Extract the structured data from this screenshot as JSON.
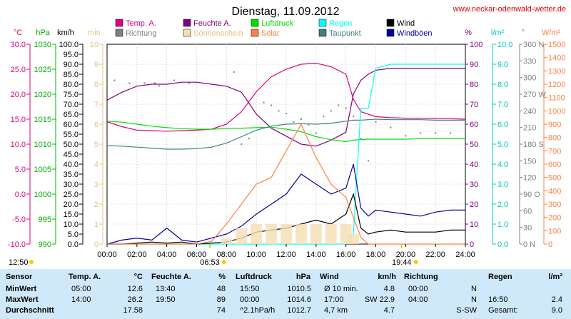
{
  "header": {
    "title": "Dienstag, 11.09.2012",
    "site": "www.neckar-odenwald-wetter.de"
  },
  "axes": {
    "temp": {
      "unit": "°C",
      "color": "#e0007f",
      "ticks": [
        "30.0",
        "25.0",
        "20.0",
        "15.0",
        "10.0",
        "5.0",
        "0.0",
        "-5.0",
        "-10.0"
      ]
    },
    "press": {
      "unit": "hPa",
      "color": "#00b000",
      "ticks": [
        "1030",
        "1025",
        "1020",
        "1015",
        "1010",
        "1005",
        "1000",
        "995",
        "990"
      ]
    },
    "wind": {
      "unit": "km/h",
      "color": "#000000",
      "ticks": [
        "100.0",
        "95.0",
        "90.0",
        "85.0",
        "80.0",
        "75.0",
        "70.0",
        "65.0",
        "60.0",
        "55.0",
        "50.0",
        "45.0",
        "40.0",
        "35.0",
        "30.0",
        "25.0",
        "20.0",
        "15.0",
        "10.0",
        "5.0",
        "0.0"
      ]
    },
    "sun": {
      "unit": "min",
      "color": "#f5deb3",
      "ticks": [
        "10",
        "9",
        "8",
        "7",
        "6",
        "5",
        "4",
        "3",
        "2",
        "1",
        "0"
      ]
    },
    "hum": {
      "unit": "%",
      "color": "#800080",
      "ticks": [
        "100",
        "90",
        "80",
        "70",
        "60",
        "50",
        "40",
        "30",
        "20",
        "10",
        "0"
      ]
    },
    "rain": {
      "unit": "l/m²",
      "color": "#00c8c8",
      "ticks": [
        "10.0",
        "9.0",
        "8.0",
        "7.0",
        "6.0",
        "5.0",
        "4.0",
        "3.0",
        "2.0",
        "1.0",
        "0.0"
      ]
    },
    "dir": {
      "unit": "°",
      "color": "#808080",
      "ticks": [
        "360 N",
        "330",
        "300",
        "270 W",
        "240",
        "210",
        "180 S",
        "150",
        "120",
        "90 O",
        "60",
        "30",
        "0 N"
      ]
    },
    "solar": {
      "unit": "W/m²",
      "color": "#ff8040",
      "ticks": [
        "1500",
        "1400",
        "1300",
        "1200",
        "1100",
        "1000",
        "900",
        "800",
        "700",
        "600",
        "500",
        "400",
        "300",
        "200",
        "100",
        "0"
      ]
    },
    "time_ticks": [
      "00:00",
      "02:00",
      "04:00",
      "06:00",
      "08:00",
      "10:00",
      "12:00",
      "14:00",
      "16:00",
      "18:00",
      "20:00",
      "22:00",
      "24:00"
    ]
  },
  "sun_events": {
    "sunrise": "06:53",
    "sunset": "19:44",
    "day_length": "12:50"
  },
  "legend": [
    {
      "label": "Temp. A.",
      "color": "#e0007f"
    },
    {
      "label": "Richtung",
      "color": "#808080"
    },
    {
      "label": "Feuchte A.",
      "color": "#800080"
    },
    {
      "label": "Sonnenschein",
      "color": "#f5deb3"
    },
    {
      "label": "Luftdruck",
      "color": "#00e000"
    },
    {
      "label": "Solar",
      "color": "#ff8040"
    },
    {
      "label": "Regen",
      "color": "#00ffff"
    },
    {
      "label": "Taupunkt",
      "color": "#408080"
    },
    {
      "label": "Wind",
      "color": "#000000"
    },
    {
      "label": "Windböen",
      "color": "#0000a0"
    }
  ],
  "chart_data": {
    "type": "line",
    "x_range": [
      "00:00",
      "24:00"
    ],
    "x_hours": [
      0,
      1,
      2,
      3,
      4,
      5,
      6,
      7,
      8,
      9,
      10,
      11,
      12,
      13,
      14,
      15,
      16,
      16.5,
      17,
      17.5,
      18,
      19,
      20,
      21,
      22,
      23,
      24
    ],
    "series": [
      {
        "name": "Temp. A.",
        "axis": "temp",
        "values": [
          14.5,
          13.5,
          12.8,
          12.7,
          12.6,
          12.7,
          12.8,
          13.0,
          14.0,
          16.5,
          20.5,
          23.5,
          25.0,
          26.0,
          26.2,
          25.5,
          24.0,
          19.0,
          16.5,
          16.0,
          15.5,
          15.3,
          15.2,
          15.2,
          15.2,
          15.1,
          15.0
        ]
      },
      {
        "name": "Feuchte A.",
        "axis": "hum",
        "values": [
          72,
          76,
          79,
          80,
          80,
          81,
          81,
          80,
          79,
          76,
          65,
          58,
          54,
          50,
          49,
          52,
          56,
          75,
          82,
          85,
          87,
          88,
          88,
          88,
          88,
          88,
          88
        ]
      },
      {
        "name": "Luftdruck",
        "axis": "press",
        "values": [
          1014.6,
          1014.4,
          1014.0,
          1013.6,
          1013.3,
          1013.1,
          1013.0,
          1013.0,
          1013.1,
          1013.2,
          1013.3,
          1013.4,
          1013.0,
          1012.5,
          1011.5,
          1010.9,
          1010.5,
          1010.8,
          1010.9,
          1011.0,
          1011.0,
          1011.0,
          1011.0,
          1011.1,
          1011.1,
          1011.1,
          1011.1
        ]
      },
      {
        "name": "Taupunkt",
        "axis": "temp",
        "values": [
          9.7,
          9.6,
          9.4,
          9.2,
          9.0,
          9.0,
          9.1,
          9.4,
          10.2,
          11.5,
          12.8,
          13.6,
          14.0,
          14.1,
          14.0,
          14.2,
          14.6,
          14.8,
          14.8,
          14.9,
          15.0,
          14.9,
          14.9,
          14.9,
          14.8,
          14.8,
          14.8
        ]
      },
      {
        "name": "Regen",
        "axis": "rain",
        "values": [
          0,
          0,
          0,
          0,
          0,
          0,
          0,
          0,
          0,
          0,
          0,
          0,
          0,
          0,
          0,
          0,
          0,
          0.5,
          6.8,
          6.8,
          8.8,
          9.0,
          9.0,
          9.0,
          9.0,
          9.0,
          9.0
        ]
      },
      {
        "name": "Wind",
        "axis": "wind",
        "values": [
          0,
          0,
          0.5,
          1,
          0.5,
          1,
          0,
          0.5,
          1,
          3,
          6,
          7,
          8,
          10,
          12,
          10,
          15,
          25,
          8,
          5,
          6,
          7,
          6,
          6,
          6,
          7,
          7
        ]
      },
      {
        "name": "Windböen",
        "axis": "wind",
        "values": [
          0,
          2,
          3,
          2,
          8,
          2,
          1,
          3,
          5,
          9,
          15,
          20,
          25,
          35,
          30,
          25,
          28,
          40,
          18,
          14,
          17,
          16,
          15,
          14,
          16,
          17,
          17
        ]
      },
      {
        "name": "Solar",
        "axis": "solar",
        "values": [
          0,
          0,
          0,
          0,
          0,
          0,
          0,
          20,
          150,
          300,
          450,
          500,
          700,
          900,
          650,
          450,
          350,
          200,
          50,
          0,
          0,
          0,
          0,
          0,
          0,
          0,
          0
        ]
      },
      {
        "name": "Sonnenschein",
        "axis": "sun",
        "values": [
          0,
          0,
          0,
          0,
          0,
          0,
          0,
          0,
          0.3,
          0.8,
          1.0,
          1.0,
          1.0,
          1.0,
          1.0,
          1.0,
          1.0,
          0.5,
          0,
          0,
          0,
          0,
          0,
          0,
          0,
          0,
          0
        ]
      }
    ],
    "richtung_points": {
      "axis": "dir",
      "x": [
        0.5,
        1.5,
        2.5,
        3.2,
        3.5,
        4.5,
        5.5,
        8.5,
        9.0,
        9.5,
        10.5,
        11.0,
        11.5,
        12.0,
        12.5,
        13.0,
        13.5,
        14.0,
        14.5,
        15.0,
        15.5,
        16.0,
        16.5,
        17.0,
        17.5,
        18.0,
        19.0,
        20.0,
        21.0,
        22.0,
        23.0
      ],
      "values": [
        295,
        290,
        290,
        290,
        285,
        295,
        290,
        310,
        180,
        190,
        255,
        250,
        240,
        235,
        220,
        225,
        215,
        200,
        230,
        240,
        250,
        245,
        230,
        190,
        150,
        220,
        210,
        195,
        200,
        200,
        200
      ]
    },
    "grid": true
  },
  "table": {
    "header": {
      "sensor": "Sensor",
      "temp": "Temp. A.",
      "temp_unit": "°C",
      "hum": "Feuchte A.",
      "hum_unit": "%",
      "press": "Luftdruck",
      "press_unit": "hPa",
      "wind": "Wind",
      "wind_unit": "km/h",
      "dir": "Richtung",
      "rain": "Regen",
      "rain_unit": "l/m²"
    },
    "rows": [
      {
        "label": "MinWert",
        "temp_time": "05:00",
        "temp_val": "12.6",
        "hum_time": "13:40",
        "hum_val": "48",
        "press_time": "15:50",
        "press_val": "1010.5",
        "wind_time": "Ø 10 min.",
        "wind_val": "4.8",
        "dir_time": "00:00",
        "dir_val": "N",
        "rain_time": "",
        "rain_val": ""
      },
      {
        "label": "MaxWert",
        "temp_time": "14:00",
        "temp_val": "26.2",
        "hum_time": "19:50",
        "hum_val": "89",
        "press_time": "00:00",
        "press_val": "1014.6",
        "wind_time": "17:00",
        "wind_val": "SW 22.9",
        "dir_time": "04:00",
        "dir_val": "N",
        "rain_time": "16:50",
        "rain_val": "2.4"
      },
      {
        "label": "Durchschnitt",
        "temp_time": "",
        "temp_val": "17.58",
        "hum_time": "",
        "hum_val": "74",
        "press_time": "^2.1hPa/h",
        "press_val": "1012.7",
        "wind_time": "4,7 km",
        "wind_val": "4.7",
        "dir_time": "",
        "dir_val": "S-SW",
        "rain_time": "Gesamt:",
        "rain_val": "9.0"
      }
    ]
  }
}
